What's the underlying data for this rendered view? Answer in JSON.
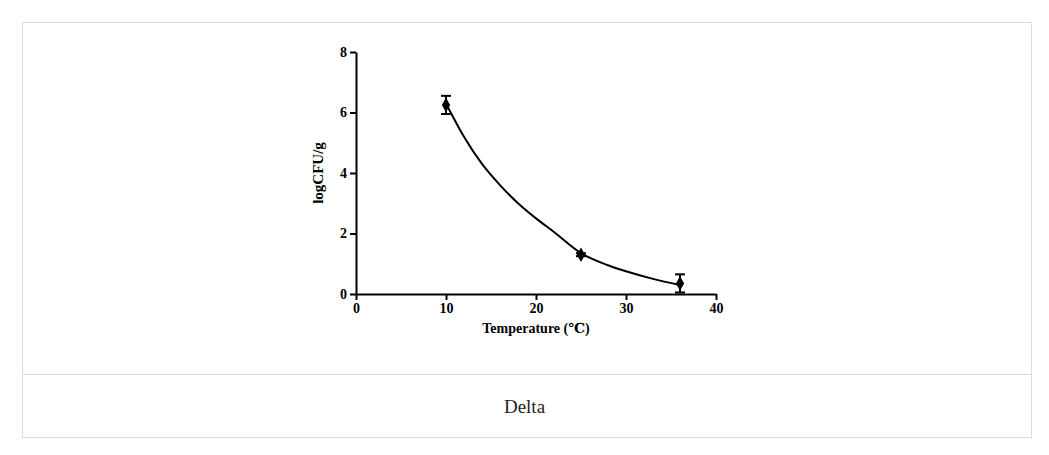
{
  "chart_data": {
    "type": "scatter",
    "caption": "Delta",
    "x_label": "Temperature (℃)",
    "y_label": "logCFU/g",
    "xlim": [
      0,
      40
    ],
    "xticks": [
      0,
      10,
      20,
      30,
      40
    ],
    "ylim": [
      0,
      8
    ],
    "yticks": [
      0,
      2,
      4,
      6,
      8
    ],
    "series": [
      {
        "type": "scatter",
        "marker": "diamond",
        "color": "#000000",
        "x": [
          10,
          25,
          36
        ],
        "values": [
          6.25,
          1.3,
          0.35
        ],
        "error": [
          0.3,
          0.05,
          0.3
        ]
      },
      {
        "type": "line",
        "line_style": "solid",
        "color": "#000000",
        "x": [
          10,
          12,
          14,
          16,
          18,
          20,
          22,
          25,
          28,
          30,
          33,
          36
        ],
        "values": [
          6.3,
          5.2,
          4.3,
          3.6,
          3.0,
          2.5,
          2.05,
          1.35,
          0.95,
          0.75,
          0.5,
          0.3
        ]
      }
    ]
  }
}
